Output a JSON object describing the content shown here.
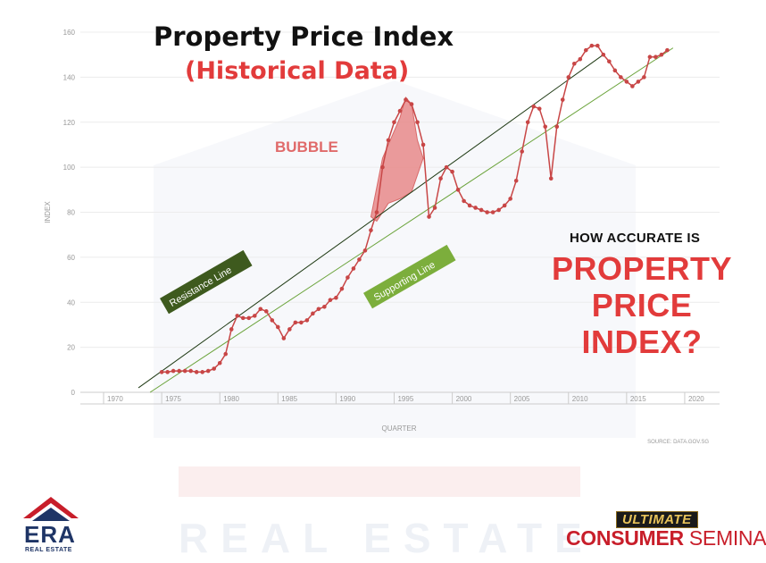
{
  "title": {
    "line1": "Property Price Index",
    "line2": "(Historical Data)"
  },
  "annotations": {
    "bubble": "BUBBLE",
    "resistance": "Resistance Line",
    "supporting": "Supporting Line",
    "question_small": "HOW ACCURATE IS",
    "question_big": [
      "PROPERTY",
      "PRICE",
      "INDEX?"
    ]
  },
  "colors": {
    "accent_red": "#e23b3b",
    "marker_red": "#c84646",
    "resistance_line": "#1f3a14",
    "support_line": "#6aa33a",
    "resistance_label_bg": "#3e5a1e",
    "support_label_bg": "#7cae3c",
    "bubble_fill": "#e88a8a"
  },
  "chart_data": {
    "type": "line",
    "title": "",
    "xlabel": "QUARTER",
    "ylabel": "INDEX",
    "source": "SOURCE: DATA.GOV.SG",
    "xlim": [
      1968,
      2023
    ],
    "ylim": [
      0,
      160
    ],
    "x_ticks": [
      1970,
      1975,
      1980,
      1985,
      1990,
      1995,
      2000,
      2005,
      2010,
      2015,
      2020
    ],
    "y_ticks": [
      0,
      20,
      40,
      60,
      80,
      100,
      120,
      140,
      160
    ],
    "grid": true,
    "series": [
      {
        "x": [
          1975.0,
          1975.5,
          1976.0,
          1976.5,
          1977.0,
          1977.5,
          1978.0,
          1978.5,
          1979.0,
          1979.5,
          1980.0,
          1980.5,
          1981.0,
          1981.5,
          1982.0,
          1982.5,
          1983.0,
          1983.5,
          1984.0,
          1984.5,
          1985.0,
          1985.5,
          1986.0,
          1986.5,
          1987.0,
          1987.5,
          1988.0,
          1988.5,
          1989.0,
          1989.5,
          1990.0,
          1990.5,
          1991.0,
          1991.5,
          1992.0,
          1992.5,
          1993.0,
          1993.5,
          1994.0,
          1994.5,
          1995.0,
          1995.5,
          1996.0,
          1996.5,
          1997.0,
          1997.5,
          1998.0,
          1998.5,
          1999.0,
          1999.5,
          2000.0,
          2000.5,
          2001.0,
          2001.5,
          2002.0,
          2002.5,
          2003.0,
          2003.5,
          2004.0,
          2004.5,
          2005.0,
          2005.5,
          2006.0,
          2006.5,
          2007.0,
          2007.5,
          2008.0,
          2008.5,
          2009.0,
          2009.5,
          2010.0,
          2010.5,
          2011.0,
          2011.5,
          2012.0,
          2012.5,
          2013.0,
          2013.5,
          2014.0,
          2014.5,
          2015.0,
          2015.5,
          2016.0,
          2016.5,
          2017.0,
          2017.5,
          2018.0,
          2018.5
        ],
        "values": [
          9,
          9,
          9.5,
          9.5,
          9.5,
          9.5,
          9,
          9,
          9.5,
          10.5,
          13,
          17,
          28,
          34,
          33,
          33,
          34,
          37,
          36,
          32,
          29,
          24,
          28,
          31,
          31,
          32,
          35,
          37,
          38,
          41,
          42,
          46,
          51,
          55,
          59,
          63,
          72,
          80,
          100,
          112,
          120,
          125,
          130,
          128,
          120,
          110,
          78,
          82,
          95,
          100,
          98,
          90,
          85,
          83,
          82,
          81,
          80,
          80,
          81,
          83,
          86,
          94,
          107,
          120,
          127,
          126,
          118,
          95,
          118,
          130,
          140,
          146,
          148,
          152,
          154,
          154,
          150,
          147,
          143,
          140,
          138,
          136,
          138,
          140,
          149,
          149,
          150,
          152
        ]
      }
    ],
    "reference_lines": [
      {
        "name": "Resistance Line",
        "x": [
          1973,
          2013
        ],
        "y": [
          2,
          150
        ]
      },
      {
        "name": "Supporting Line",
        "x": [
          1974,
          2019
        ],
        "y": [
          0,
          153
        ]
      }
    ],
    "bubble_region": {
      "label": "BUBBLE",
      "upper_x": [
        1993,
        1994,
        1995,
        1995.5,
        1996,
        1996.5,
        1997,
        1997.5
      ],
      "upper_y": [
        78,
        104,
        116,
        122,
        131,
        128,
        112,
        104
      ],
      "lower_x": [
        1997.5,
        1996.5,
        1995.5,
        1994.5,
        1993.5
      ],
      "lower_y": [
        104,
        89,
        86,
        84,
        76
      ]
    }
  }
}
